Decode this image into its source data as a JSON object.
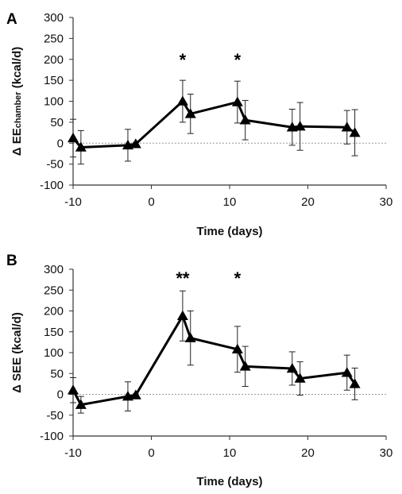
{
  "chart_data": [
    {
      "type": "line",
      "panel_label": "A",
      "ylabel_main": "Δ EE",
      "ylabel_sub": "chamber",
      "ylabel_unit": " (kcal/d)",
      "xlabel": "Time (days)",
      "xlim": [
        -10,
        30
      ],
      "ylim": [
        -100,
        300
      ],
      "xticks": [
        -10,
        0,
        10,
        20,
        30
      ],
      "yticks": [
        -100,
        -50,
        0,
        50,
        100,
        150,
        200,
        250,
        300
      ],
      "zero_line": "dotted",
      "series": [
        {
          "x": [
            -10,
            -9,
            -3,
            -2,
            4,
            5,
            11,
            12,
            18,
            19,
            25,
            26
          ],
          "y": [
            12,
            -10,
            -5,
            -2,
            100,
            70,
            98,
            55,
            38,
            40,
            38,
            25
          ],
          "error": [
            45,
            40,
            38,
            3,
            50,
            47,
            50,
            47,
            43,
            57,
            40,
            55
          ]
        }
      ],
      "annotations": [
        {
          "text": "*",
          "x": 4
        },
        {
          "text": "*",
          "x": 11
        }
      ]
    },
    {
      "type": "line",
      "panel_label": "B",
      "ylabel_main": "Δ SEE",
      "ylabel_sub": "",
      "ylabel_unit": "  (kcal/d)",
      "xlabel": "Time (days)",
      "xlim": [
        -10,
        30
      ],
      "ylim": [
        -100,
        300
      ],
      "xticks": [
        -10,
        0,
        10,
        20,
        30
      ],
      "yticks": [
        -100,
        -50,
        0,
        50,
        100,
        150,
        200,
        250,
        300
      ],
      "zero_line": "dotted",
      "series": [
        {
          "x": [
            -10,
            -9,
            -3,
            -2,
            4,
            5,
            11,
            12,
            18,
            19,
            25,
            26
          ],
          "y": [
            10,
            -25,
            -5,
            -2,
            188,
            135,
            108,
            67,
            62,
            38,
            52,
            25
          ],
          "error": [
            30,
            20,
            35,
            3,
            60,
            65,
            55,
            48,
            40,
            40,
            42,
            38
          ]
        }
      ],
      "annotations": [
        {
          "text": "**",
          "x": 4
        },
        {
          "text": "*",
          "x": 11
        }
      ]
    }
  ]
}
